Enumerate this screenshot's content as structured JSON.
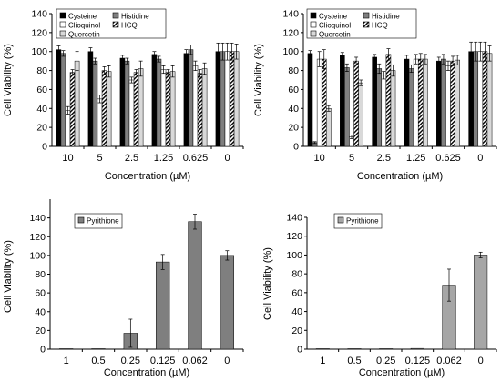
{
  "chart_data": [
    {
      "type": "bar",
      "ylabel": "Cell Viability (%)",
      "xlabel": "Concentration (µM)",
      "ylim": [
        0,
        140
      ],
      "yticks": [
        "0",
        "20",
        "40",
        "60",
        "80",
        "100",
        "120",
        "140"
      ],
      "categories": [
        "10",
        "5",
        "2.5",
        "1.25",
        "0.625",
        "0"
      ],
      "legend": {
        "placement": "top-left",
        "columns": 2
      },
      "series": [
        {
          "name": "Cysteine",
          "color": "#000000",
          "pattern": "solid",
          "values": [
            102,
            100,
            93,
            97,
            98,
            100
          ],
          "errors": [
            4,
            4,
            3,
            3,
            4,
            9
          ]
        },
        {
          "name": "Histidine",
          "color": "#7f7f7f",
          "pattern": "solid",
          "values": [
            98,
            90,
            90,
            92,
            102,
            100
          ],
          "errors": [
            3,
            3,
            3,
            3,
            5,
            9
          ]
        },
        {
          "name": "Clioquinol",
          "color": "#ffffff",
          "pattern": "outline",
          "values": [
            38,
            50,
            70,
            81,
            85,
            100
          ],
          "errors": [
            4,
            4,
            3,
            4,
            5,
            9
          ]
        },
        {
          "name": "HCQ",
          "color": "#000000",
          "pattern": "hatch",
          "values": [
            78,
            80,
            78,
            78,
            77,
            100
          ],
          "errors": [
            3,
            4,
            3,
            3,
            4,
            9
          ]
        },
        {
          "name": "Quercetin",
          "color": "#d9d9d9",
          "pattern": "solid",
          "values": [
            90,
            79,
            82,
            79,
            82,
            100
          ],
          "errors": [
            10,
            6,
            8,
            6,
            6,
            8
          ]
        }
      ]
    },
    {
      "type": "bar",
      "ylabel": "Cell Viability (%)",
      "xlabel": "Concentration (µM)",
      "ylim": [
        0,
        140
      ],
      "yticks": [
        "0",
        "20",
        "40",
        "60",
        "80",
        "100",
        "120",
        "140"
      ],
      "categories": [
        "10",
        "5",
        "2.5",
        "1.25",
        "0.625",
        "0"
      ],
      "legend": {
        "placement": "top-left",
        "columns": 2
      },
      "series": [
        {
          "name": "Cysteine",
          "color": "#000000",
          "pattern": "solid",
          "values": [
            98,
            96,
            94,
            92,
            90,
            100
          ],
          "errors": [
            3,
            3,
            3,
            4,
            4,
            10
          ]
        },
        {
          "name": "Histidine",
          "color": "#7f7f7f",
          "pattern": "solid",
          "values": [
            4,
            83,
            82,
            82,
            92,
            100
          ],
          "errors": [
            1,
            4,
            5,
            4,
            5,
            10
          ]
        },
        {
          "name": "Clioquinol",
          "color": "#ffffff",
          "pattern": "outline",
          "values": [
            92,
            10,
            75,
            92,
            85,
            100
          ],
          "errors": [
            8,
            2,
            4,
            5,
            5,
            10
          ]
        },
        {
          "name": "HCQ",
          "color": "#000000",
          "pattern": "hatch",
          "values": [
            92,
            90,
            97,
            92,
            90,
            100
          ],
          "errors": [
            10,
            4,
            6,
            6,
            5,
            10
          ]
        },
        {
          "name": "Quercetin",
          "color": "#d9d9d9",
          "pattern": "solid",
          "values": [
            40,
            67,
            80,
            92,
            91,
            98
          ],
          "errors": [
            3,
            3,
            6,
            5,
            5,
            8
          ]
        }
      ]
    },
    {
      "type": "bar",
      "ylabel": "Cell Viability (%)",
      "xlabel": "Concentration (µM)",
      "ylim": [
        0,
        160
      ],
      "yticks": [
        "0",
        "20",
        "40",
        "60",
        "80",
        "100",
        "120",
        "140"
      ],
      "categories": [
        "1",
        "0.5",
        "0.25",
        "0.125",
        "0.062",
        "0"
      ],
      "legend": {
        "placement": "top-left",
        "columns": 1
      },
      "series": [
        {
          "name": "Pyrithione",
          "color": "#7f7f7f",
          "pattern": "solid",
          "values": [
            0,
            0,
            17,
            93,
            136,
            100
          ],
          "errors": [
            0,
            0,
            15,
            8,
            8,
            5
          ]
        }
      ]
    },
    {
      "type": "bar",
      "ylabel": "Cell Viability (%)",
      "xlabel": "Concentration (µM)",
      "ylim": [
        0,
        140
      ],
      "yticks": [
        "0",
        "20",
        "40",
        "60",
        "80",
        "100",
        "120",
        "140"
      ],
      "categories": [
        "1",
        "0.5",
        "0.25",
        "0.125",
        "0.062",
        "0"
      ],
      "legend": {
        "placement": "top-left",
        "columns": 1
      },
      "series": [
        {
          "name": "Pyrithione",
          "color": "#a6a6a6",
          "pattern": "solid",
          "values": [
            0.5,
            0.5,
            0.5,
            0.8,
            68,
            100
          ],
          "errors": [
            0,
            0,
            0,
            0,
            17,
            3
          ]
        }
      ]
    }
  ]
}
